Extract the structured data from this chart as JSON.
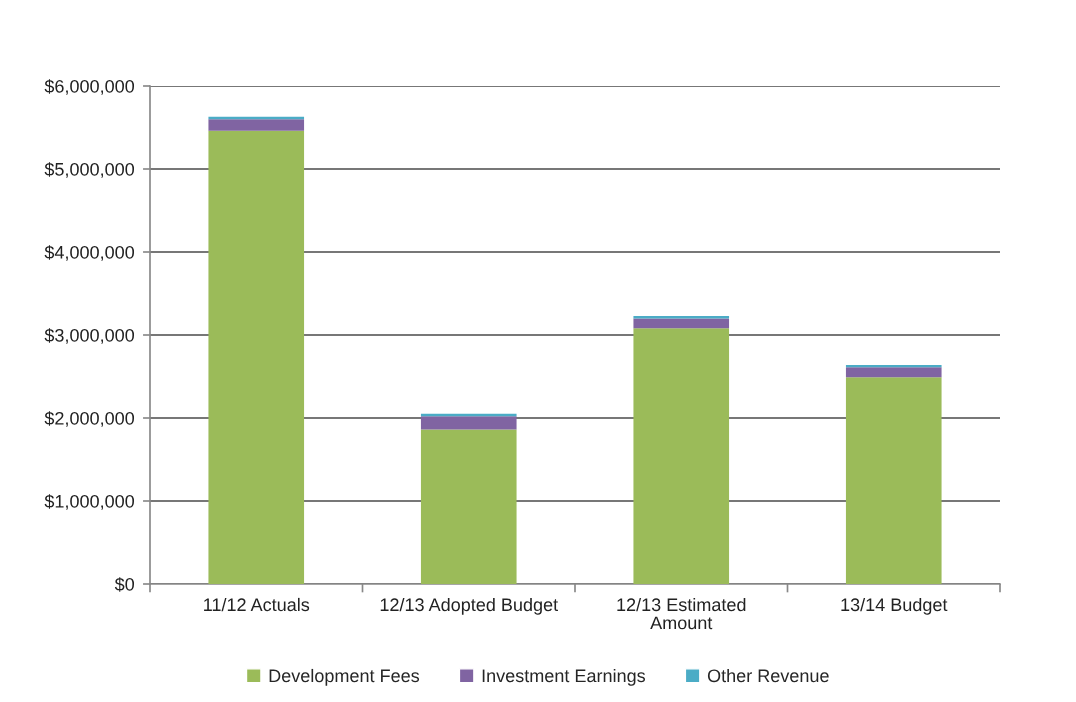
{
  "chart_data": {
    "type": "bar",
    "stacked": true,
    "categories": [
      "11/12 Actuals",
      "12/13 Adopted Budget",
      "12/13 Estimated Amount",
      "13/14 Budget"
    ],
    "series": [
      {
        "name": "Development Fees",
        "color": "#9bbb59",
        "values": [
          5460000,
          1860000,
          3080000,
          2490000
        ]
      },
      {
        "name": "Investment Earnings",
        "color": "#8064a2",
        "values": [
          140000,
          160000,
          120000,
          120000
        ]
      },
      {
        "name": "Other Revenue",
        "color": "#4bacc6",
        "values": [
          30000,
          30000,
          30000,
          30000
        ]
      }
    ],
    "ylim": [
      0,
      6000000
    ],
    "yticks": [
      {
        "value": 0,
        "label": "$0"
      },
      {
        "value": 1000000,
        "label": "$1,000,000"
      },
      {
        "value": 2000000,
        "label": "$2,000,000"
      },
      {
        "value": 3000000,
        "label": "$3,000,000"
      },
      {
        "value": 4000000,
        "label": "$4,000,000"
      },
      {
        "value": 5000000,
        "label": "$5,000,000"
      },
      {
        "value": 6000000,
        "label": "$6,000,000"
      }
    ],
    "grid": "y",
    "legend": "bottom"
  }
}
